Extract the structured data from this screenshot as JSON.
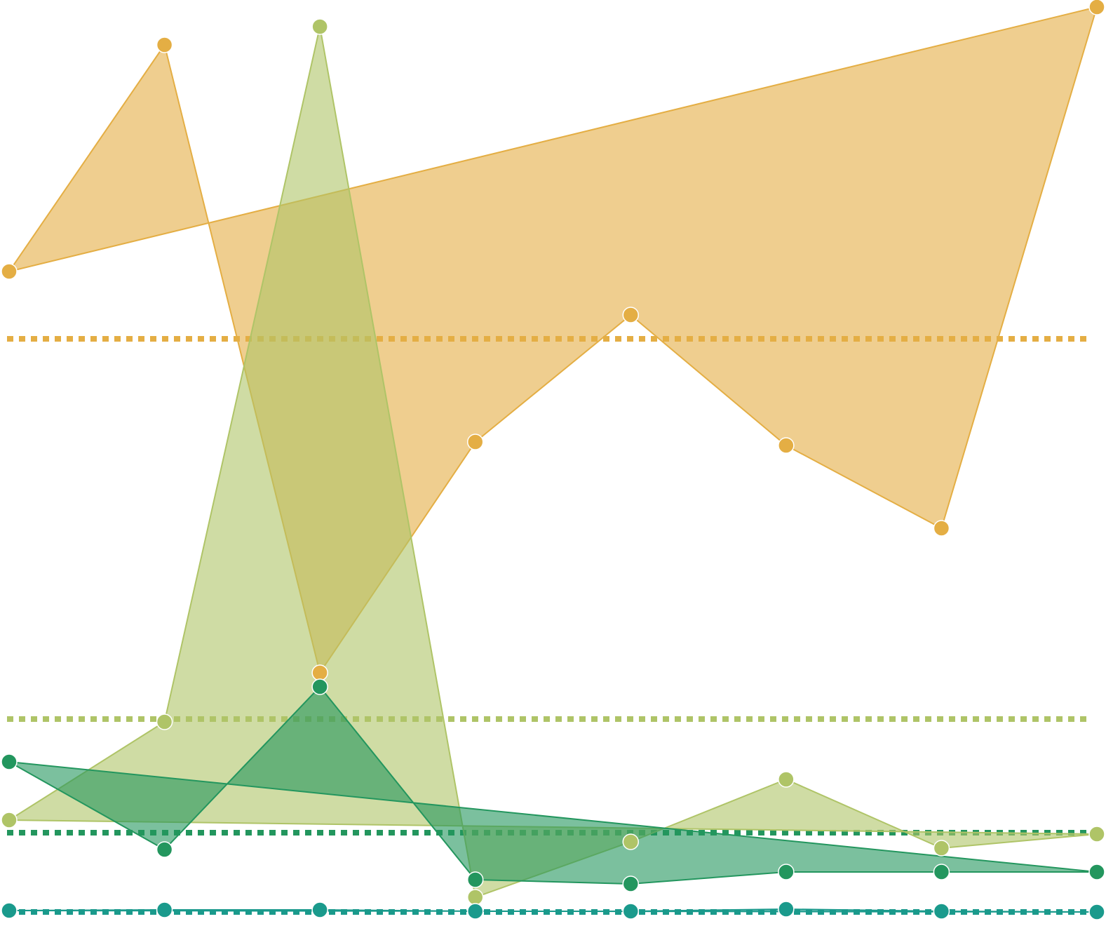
{
  "chart_data": {
    "type": "area",
    "title": "",
    "xlabel": "",
    "ylabel": "",
    "grid": false,
    "legend": "none",
    "x": [
      1,
      2,
      3,
      4,
      5,
      6,
      7,
      8
    ],
    "ylim": [
      0,
      1320
    ],
    "series": [
      {
        "color": "#E4AE44",
        "fill_opacity": 0.6,
        "values": [
          933,
          1256,
          361,
          690,
          871,
          685,
          567,
          1310
        ],
        "reference_line": 837
      },
      {
        "color": "#AFC467",
        "fill_opacity": 0.6,
        "values": [
          151,
          291,
          1282,
          41,
          120,
          209,
          111,
          131
        ],
        "reference_line": 295
      },
      {
        "color": "#23965E",
        "fill_opacity": 0.6,
        "values": [
          234,
          109,
          341,
          66,
          60,
          77,
          77,
          77
        ],
        "reference_line": 133
      },
      {
        "color": "#1A9A8C",
        "fill_opacity": 0.6,
        "values": [
          22,
          23,
          23,
          21,
          21,
          24,
          21,
          20
        ],
        "reference_line": 20
      }
    ]
  }
}
